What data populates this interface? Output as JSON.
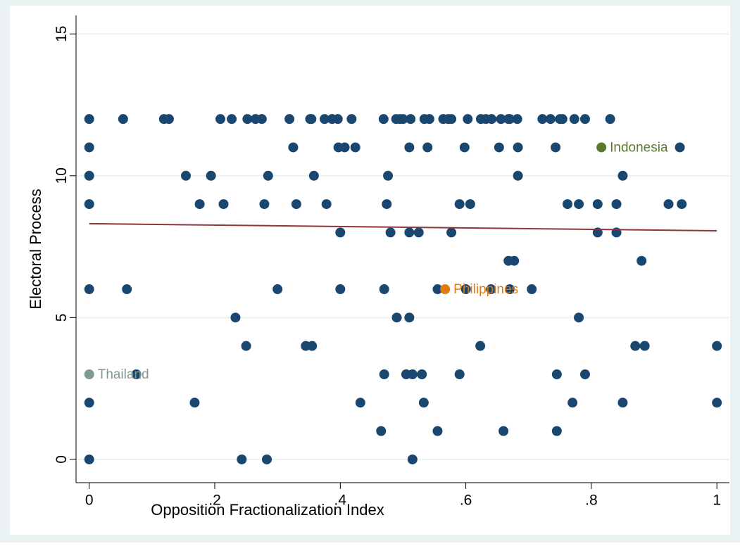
{
  "chart_data": {
    "type": "scatter",
    "xlabel": "Opposition Fractionalization Index",
    "ylabel": "Electoral Process",
    "xlim": [
      -0.021,
      1.02
    ],
    "ylim": [
      -0.82,
      15.65
    ],
    "xticks": [
      0,
      {
        "value": 0.2,
        "label": ".2"
      },
      {
        "value": 0.4,
        "label": ".4"
      },
      {
        "value": 0.6,
        "label": ".6"
      },
      {
        "value": 0.8,
        "label": ".8"
      },
      1
    ],
    "yticks": [
      0,
      5,
      10,
      15
    ],
    "grid": true,
    "series": [
      {
        "color": "#1a476f",
        "x": [
          0,
          0.054,
          0.119,
          0.127,
          0.209,
          0.227,
          0.252,
          0.265,
          0.275,
          0.319,
          0.352,
          0.354,
          0.375,
          0.387,
          0.396,
          0.418,
          0.469,
          0.489,
          0.495,
          0.5,
          0.512,
          0.534,
          0.542,
          0.564,
          0.572,
          0.577,
          0.603,
          0.624,
          0.632,
          0.641,
          0.656,
          0.668,
          0.67,
          0.682,
          0.722,
          0.735,
          0.75,
          0.754,
          0.773,
          0.79,
          0.83,
          0,
          0.325,
          0.397,
          0.407,
          0.424,
          0.51,
          0.539,
          0.598,
          0.653,
          0.683,
          0.743,
          0.941,
          0,
          0.154,
          0.194,
          0.285,
          0.358,
          0.476,
          0.683,
          0.85,
          0,
          0.176,
          0.214,
          0.279,
          0.33,
          0.378,
          0.474,
          0.59,
          0.607,
          0.762,
          0.78,
          0.81,
          0.84,
          0.923,
          0.944,
          0.4,
          0.48,
          0.51,
          0.525,
          0.577,
          0.81,
          0.84,
          0.668,
          0.677,
          0.88,
          0,
          0.06,
          0.3,
          0.4,
          0.47,
          0.555,
          0.6,
          0.64,
          0.67,
          0.705,
          0.233,
          0.49,
          0.51,
          0.78,
          0.25,
          0.345,
          0.355,
          0.623,
          0.87,
          0.885,
          1,
          0.075,
          0.47,
          0.505,
          0.515,
          0.53,
          0.59,
          0.745,
          0.79,
          0,
          0.168,
          0.432,
          0.533,
          0.77,
          0.85,
          1,
          0.465,
          0.555,
          0.66,
          0.745,
          0,
          0.243,
          0.283,
          0.515
        ],
        "values": [
          12,
          12,
          12,
          12,
          12,
          12,
          12,
          12,
          12,
          12,
          12,
          12,
          12,
          12,
          12,
          12,
          12,
          12,
          12,
          12,
          12,
          12,
          12,
          12,
          12,
          12,
          12,
          12,
          12,
          12,
          12,
          12,
          12,
          12,
          12,
          12,
          12,
          12,
          12,
          12,
          12,
          11,
          11,
          11,
          11,
          11,
          11,
          11,
          11,
          11,
          11,
          11,
          11,
          10,
          10,
          10,
          10,
          10,
          10,
          10,
          10,
          9,
          9,
          9,
          9,
          9,
          9,
          9,
          9,
          9,
          9,
          9,
          9,
          9,
          9,
          9,
          8,
          8,
          8,
          8,
          8,
          8,
          8,
          7,
          7,
          7,
          6,
          6,
          6,
          6,
          6,
          6,
          6,
          6,
          6,
          6,
          5,
          5,
          5,
          5,
          4,
          4,
          4,
          4,
          4,
          4,
          4,
          3,
          3,
          3,
          3,
          3,
          3,
          3,
          3,
          2,
          2,
          2,
          2,
          2,
          2,
          2,
          1,
          1,
          1,
          1,
          0,
          0,
          0,
          0
        ]
      }
    ],
    "labeled_points": [
      {
        "label": "Indonesia",
        "x": 0.816,
        "y": 11,
        "color": "#5a7a2e"
      },
      {
        "label": "Philippines",
        "x": 0.567,
        "y": 6,
        "color": "#e07b10"
      },
      {
        "label": "Thailand",
        "x": 0,
        "y": 3,
        "color": "#7f9a92"
      }
    ],
    "fit_line": {
      "x": [
        0,
        1
      ],
      "y": [
        8.31,
        8.06
      ],
      "color": "#90353b"
    }
  }
}
